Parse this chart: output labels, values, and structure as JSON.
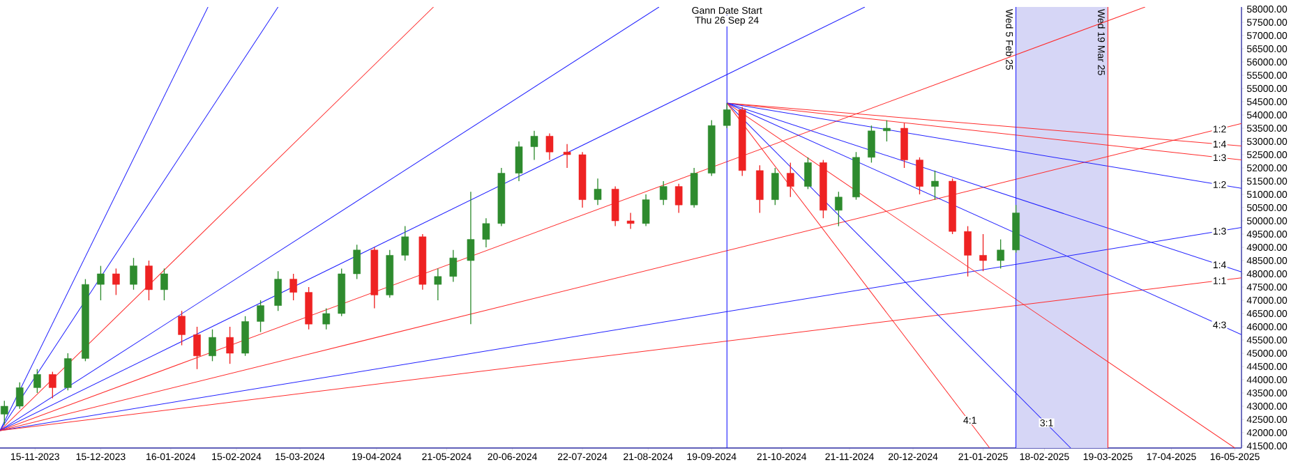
{
  "chart_data": {
    "type": "candlestick",
    "x": [
      "2023-11-01",
      "2023-11-08",
      "2023-11-16",
      "2023-11-23",
      "2023-11-30",
      "2023-12-08",
      "2023-12-15",
      "2023-12-22",
      "2023-12-30",
      "2024-01-06",
      "2024-01-13",
      "2024-01-21",
      "2024-01-28",
      "2024-02-04",
      "2024-02-12",
      "2024-02-19",
      "2024-02-26",
      "2024-03-05",
      "2024-03-12",
      "2024-03-19",
      "2024-03-27",
      "2024-04-03",
      "2024-04-10",
      "2024-04-18",
      "2024-04-25",
      "2024-05-02",
      "2024-05-10",
      "2024-05-17",
      "2024-05-24",
      "2024-06-01",
      "2024-06-08",
      "2024-06-15",
      "2024-06-23",
      "2024-06-30",
      "2024-07-07",
      "2024-07-15",
      "2024-07-22",
      "2024-07-29",
      "2024-08-06",
      "2024-08-13",
      "2024-08-20",
      "2024-08-28",
      "2024-09-04",
      "2024-09-11",
      "2024-09-19",
      "2024-09-26",
      "2024-10-03",
      "2024-10-11",
      "2024-10-18",
      "2024-10-25",
      "2024-11-02",
      "2024-11-09",
      "2024-11-16",
      "2024-11-24",
      "2024-12-01",
      "2024-12-08",
      "2024-12-16",
      "2024-12-23",
      "2024-12-30",
      "2025-01-07",
      "2025-01-14",
      "2025-01-21",
      "2025-01-29",
      "2025-02-05"
    ],
    "ohlc": [
      [
        42700,
        43200,
        42300,
        43000
      ],
      [
        43000,
        43900,
        42900,
        43700
      ],
      [
        43700,
        44400,
        43500,
        44200
      ],
      [
        44200,
        44300,
        43300,
        43700
      ],
      [
        43700,
        45000,
        43600,
        44800
      ],
      [
        44800,
        47800,
        44700,
        47600
      ],
      [
        47600,
        48300,
        47000,
        48000
      ],
      [
        48000,
        48200,
        47200,
        47600
      ],
      [
        47600,
        48600,
        47400,
        48300
      ],
      [
        48300,
        48500,
        47000,
        47400
      ],
      [
        47400,
        48200,
        47000,
        48000
      ],
      [
        46400,
        46600,
        45300,
        45700
      ],
      [
        45700,
        46000,
        44400,
        44900
      ],
      [
        44900,
        45900,
        44700,
        45600
      ],
      [
        45600,
        46000,
        44600,
        45000
      ],
      [
        45000,
        46400,
        44900,
        46200
      ],
      [
        46200,
        47000,
        45800,
        46800
      ],
      [
        46800,
        48100,
        46600,
        47800
      ],
      [
        47800,
        48000,
        47000,
        47300
      ],
      [
        47300,
        47500,
        45900,
        46100
      ],
      [
        46100,
        46700,
        45900,
        46500
      ],
      [
        46500,
        48200,
        46400,
        48000
      ],
      [
        48000,
        49100,
        47800,
        48900
      ],
      [
        48900,
        49000,
        46700,
        47200
      ],
      [
        47200,
        48900,
        47100,
        48700
      ],
      [
        48700,
        49800,
        48500,
        49400
      ],
      [
        49400,
        49500,
        47400,
        47600
      ],
      [
        47600,
        48200,
        47000,
        47900
      ],
      [
        47900,
        48900,
        47700,
        48600
      ],
      [
        48500,
        51100,
        46100,
        49300
      ],
      [
        49300,
        50100,
        49000,
        49900
      ],
      [
        49900,
        52000,
        49800,
        51800
      ],
      [
        51800,
        53000,
        51500,
        52800
      ],
      [
        52800,
        53400,
        52300,
        53200
      ],
      [
        53200,
        53300,
        52300,
        52600
      ],
      [
        52600,
        52900,
        52000,
        52500
      ],
      [
        52500,
        52600,
        50500,
        50800
      ],
      [
        50800,
        51600,
        50600,
        51200
      ],
      [
        51200,
        51300,
        49800,
        50000
      ],
      [
        50000,
        50300,
        49700,
        49900
      ],
      [
        49900,
        51000,
        49800,
        50800
      ],
      [
        50800,
        51500,
        50600,
        51300
      ],
      [
        51300,
        51400,
        50300,
        50600
      ],
      [
        50600,
        52000,
        50500,
        51800
      ],
      [
        51800,
        53800,
        51700,
        53600
      ],
      [
        53600,
        54450,
        53500,
        54200
      ],
      [
        54200,
        54300,
        51700,
        51900
      ],
      [
        51900,
        52100,
        50300,
        50800
      ],
      [
        50800,
        52000,
        50600,
        51800
      ],
      [
        51800,
        52200,
        50900,
        51300
      ],
      [
        51300,
        52400,
        51200,
        52200
      ],
      [
        52200,
        52300,
        50100,
        50400
      ],
      [
        50400,
        51100,
        49800,
        50900
      ],
      [
        50900,
        52600,
        50800,
        52400
      ],
      [
        52400,
        53600,
        52200,
        53400
      ],
      [
        53400,
        53800,
        53000,
        53500
      ],
      [
        53500,
        53700,
        52000,
        52300
      ],
      [
        52300,
        52400,
        51000,
        51300
      ],
      [
        51300,
        51900,
        50800,
        51500
      ],
      [
        51500,
        51600,
        49500,
        49600
      ],
      [
        49600,
        49800,
        47900,
        48700
      ],
      [
        48700,
        49500,
        48100,
        48500
      ],
      [
        48500,
        49300,
        48200,
        48900
      ],
      [
        48900,
        50600,
        48800,
        50300
      ]
    ],
    "colors": [
      "#2e8b2e",
      "#2e8b2e",
      "#2e8b2e",
      "#ee2222",
      "#2e8b2e",
      "#2e8b2e",
      "#2e8b2e",
      "#ee2222",
      "#2e8b2e",
      "#ee2222",
      "#2e8b2e",
      "#ee2222",
      "#ee2222",
      "#2e8b2e",
      "#ee2222",
      "#2e8b2e",
      "#2e8b2e",
      "#2e8b2e",
      "#ee2222",
      "#ee2222",
      "#2e8b2e",
      "#2e8b2e",
      "#2e8b2e",
      "#ee2222",
      "#2e8b2e",
      "#2e8b2e",
      "#ee2222",
      "#2e8b2e",
      "#2e8b2e",
      "#2e8b2e",
      "#2e8b2e",
      "#2e8b2e",
      "#2e8b2e",
      "#2e8b2e",
      "#ee2222",
      "#ee2222",
      "#ee2222",
      "#2e8b2e",
      "#ee2222",
      "#ee2222",
      "#2e8b2e",
      "#2e8b2e",
      "#ee2222",
      "#2e8b2e",
      "#2e8b2e",
      "#2e8b2e",
      "#ee2222",
      "#ee2222",
      "#2e8b2e",
      "#ee2222",
      "#2e8b2e",
      "#ee2222",
      "#2e8b2e",
      "#2e8b2e",
      "#2e8b2e",
      "#2e8b2e",
      "#ee2222",
      "#ee2222",
      "#2e8b2e",
      "#ee2222",
      "#ee2222",
      "#ee2222",
      "#2e8b2e",
      "#2e8b2e"
    ],
    "series": [
      {
        "type": "line",
        "x": [
          "2023-10-30",
          "2024-02-02"
        ],
        "values": [
          42080,
          58080
        ],
        "color": "#1f1fff"
      },
      {
        "type": "line",
        "x": [
          "2023-10-30",
          "2024-03-05"
        ],
        "values": [
          42080,
          58080
        ],
        "color": "#1f1fff"
      },
      {
        "type": "line",
        "x": [
          "2023-10-30",
          "2024-05-15"
        ],
        "values": [
          42080,
          58080
        ],
        "color": "#ff2a2a"
      },
      {
        "type": "line",
        "x": [
          "2023-10-30",
          "2024-08-26"
        ],
        "values": [
          42080,
          58080
        ],
        "color": "#1f1fff"
      },
      {
        "type": "line",
        "x": [
          "2023-10-30",
          "2024-11-28"
        ],
        "values": [
          42080,
          58080
        ],
        "color": "#1f1fff"
      },
      {
        "type": "line",
        "x": [
          "2023-10-30",
          "2025-04-05"
        ],
        "values": [
          42080,
          58080
        ],
        "color": "#ff2a2a"
      },
      {
        "type": "line",
        "x": [
          "2023-10-30",
          "2025-05-19"
        ],
        "values": [
          42080,
          53680
        ],
        "color": "#ff2a2a"
      },
      {
        "type": "line",
        "x": [
          "2023-10-30",
          "2025-05-19"
        ],
        "values": [
          42080,
          49750
        ],
        "color": "#1f1fff"
      },
      {
        "type": "line",
        "x": [
          "2023-10-30",
          "2025-05-19"
        ],
        "values": [
          42080,
          47850
        ],
        "color": "#ff2a2a"
      },
      {
        "type": "line",
        "x": [
          "2024-09-26",
          "2025-05-19"
        ],
        "values": [
          54450,
          52830
        ],
        "color": "#ff2a2a"
      },
      {
        "type": "line",
        "x": [
          "2024-09-26",
          "2025-05-19"
        ],
        "values": [
          54450,
          52300
        ],
        "color": "#ff2a2a"
      },
      {
        "type": "line",
        "x": [
          "2024-09-26",
          "2025-05-19"
        ],
        "values": [
          54450,
          51230
        ],
        "color": "#1f1fff"
      },
      {
        "type": "line",
        "x": [
          "2024-09-26",
          "2025-05-19"
        ],
        "values": [
          54450,
          48070
        ],
        "color": "#1f1fff"
      },
      {
        "type": "line",
        "x": [
          "2024-09-26",
          "2025-05-19"
        ],
        "values": [
          54450,
          45700
        ],
        "color": "#1f1fff"
      },
      {
        "type": "line",
        "x": [
          "2024-09-26",
          "2025-05-16"
        ],
        "values": [
          54450,
          41420
        ],
        "color": "#ff2a2a"
      },
      {
        "type": "line",
        "x": [
          "2024-09-26",
          "2025-03-02"
        ],
        "values": [
          54450,
          41420
        ],
        "color": "#1f1fff"
      },
      {
        "type": "line",
        "x": [
          "2024-09-26",
          "2025-01-24"
        ],
        "values": [
          54450,
          41420
        ],
        "color": "#ff2a2a"
      }
    ],
    "xlim": [
      "2023-10-30",
      "2025-05-19"
    ],
    "ylim": [
      41420,
      58080
    ],
    "xticks": [
      {
        "value": "2023-11-15",
        "label": "15-11-2023"
      },
      {
        "value": "2023-12-15",
        "label": "15-12-2023"
      },
      {
        "value": "2024-01-16",
        "label": "16-01-2024"
      },
      {
        "value": "2024-02-15",
        "label": "15-02-2024"
      },
      {
        "value": "2024-03-15",
        "label": "15-03-2024"
      },
      {
        "value": "2024-04-19",
        "label": "19-04-2024"
      },
      {
        "value": "2024-05-21",
        "label": "21-05-2024"
      },
      {
        "value": "2024-06-20",
        "label": "20-06-2024"
      },
      {
        "value": "2024-07-22",
        "label": "22-07-2024"
      },
      {
        "value": "2024-08-21",
        "label": "21-08-2024"
      },
      {
        "value": "2024-09-19",
        "label": "19-09-2024"
      },
      {
        "value": "2024-10-21",
        "label": "21-10-2024"
      },
      {
        "value": "2024-11-21",
        "label": "21-11-2024"
      },
      {
        "value": "2024-12-20",
        "label": "20-12-2024"
      },
      {
        "value": "2025-01-21",
        "label": "21-01-2025"
      },
      {
        "value": "2025-02-18",
        "label": "18-02-2025"
      },
      {
        "value": "2025-03-19",
        "label": "19-03-2025"
      },
      {
        "value": "2025-04-17",
        "label": "17-04-2025"
      },
      {
        "value": "2025-05-16",
        "label": "16-05-2025"
      }
    ],
    "yticks": [
      {
        "value": 41500,
        "label": "41500.00"
      },
      {
        "value": 42000,
        "label": "42000.00"
      },
      {
        "value": 42500,
        "label": "42500.00"
      },
      {
        "value": 43000,
        "label": "43000.00"
      },
      {
        "value": 43500,
        "label": "43500.00"
      },
      {
        "value": 44000,
        "label": "44000.00"
      },
      {
        "value": 44500,
        "label": "44500.00"
      },
      {
        "value": 45000,
        "label": "45000.00"
      },
      {
        "value": 45500,
        "label": "45500.00"
      },
      {
        "value": 46000,
        "label": "46000.00"
      },
      {
        "value": 46500,
        "label": "46500.00"
      },
      {
        "value": 47000,
        "label": "47000.00"
      },
      {
        "value": 47500,
        "label": "47500.00"
      },
      {
        "value": 48000,
        "label": "48000.00"
      },
      {
        "value": 48500,
        "label": "48500.00"
      },
      {
        "value": 49000,
        "label": "49000.00"
      },
      {
        "value": 49500,
        "label": "49500.00"
      },
      {
        "value": 50000,
        "label": "50000.00"
      },
      {
        "value": 50500,
        "label": "50500.00"
      },
      {
        "value": 51000,
        "label": "51000.00"
      },
      {
        "value": 51500,
        "label": "51500.00"
      },
      {
        "value": 52000,
        "label": "52000.00"
      },
      {
        "value": 52500,
        "label": "52500.00"
      },
      {
        "value": 53000,
        "label": "53000.00"
      },
      {
        "value": 53500,
        "label": "53500.00"
      },
      {
        "value": 54000,
        "label": "54000.00"
      },
      {
        "value": 54500,
        "label": "54500.00"
      },
      {
        "value": 55000,
        "label": "55000.00"
      },
      {
        "value": 55500,
        "label": "55500.00"
      },
      {
        "value": 56000,
        "label": "56000.00"
      },
      {
        "value": 56500,
        "label": "56500.00"
      },
      {
        "value": 57000,
        "label": "57000.00"
      },
      {
        "value": 57500,
        "label": "57500.00"
      },
      {
        "value": 58000,
        "label": "58000.00"
      }
    ],
    "bands": [
      {
        "axis": "x",
        "from": "2025-02-05",
        "to": "2025-03-19",
        "color": "#d6d6f6"
      }
    ],
    "ref_lines": [
      {
        "axis": "x",
        "value": "2024-09-26",
        "color": "#1f1fff"
      },
      {
        "axis": "x",
        "value": "2025-02-05",
        "label": "Wed 5 Feb 25",
        "color": "#1f1fff"
      },
      {
        "axis": "x",
        "value": "2025-03-19",
        "label": "Wed 19 Mar 25",
        "color": "#ff2a2a"
      }
    ],
    "annotations": [
      {
        "text": "Gann Date Start",
        "x": "2024-09-26",
        "y": 57950
      },
      {
        "text": "Thu 26 Sep 24",
        "x": "2024-09-26",
        "y": 57550
      },
      {
        "text": "1:2",
        "x": "2025-05-09",
        "y": 53470
      },
      {
        "text": "1:4",
        "x": "2025-05-09",
        "y": 52900
      },
      {
        "text": "1:3",
        "x": "2025-05-09",
        "y": 52390
      },
      {
        "text": "1:2",
        "x": "2025-05-09",
        "y": 51370
      },
      {
        "text": "1:3",
        "x": "2025-05-09",
        "y": 49610
      },
      {
        "text": "1:4",
        "x": "2025-05-09",
        "y": 48340
      },
      {
        "text": "1:1",
        "x": "2025-05-09",
        "y": 47740
      },
      {
        "text": "4:3",
        "x": "2025-05-09",
        "y": 46070
      },
      {
        "text": "4:1",
        "x": "2025-01-15",
        "y": 42470
      },
      {
        "text": "3:1",
        "x": "2025-02-19",
        "y": 42370
      }
    ]
  }
}
